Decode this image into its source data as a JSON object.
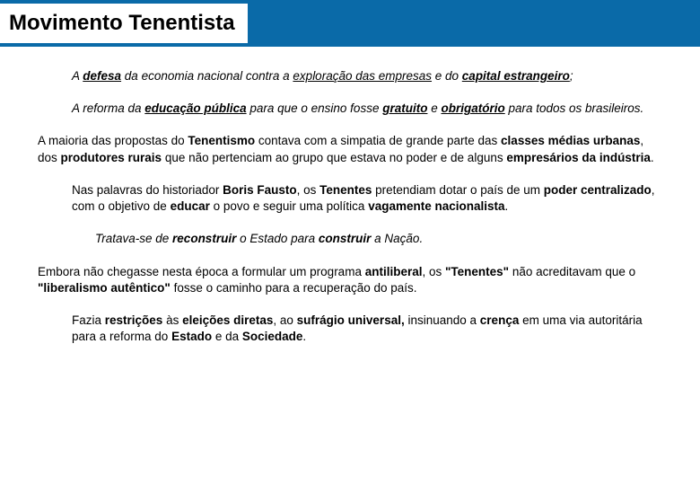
{
  "colors": {
    "header_bg": "#0a6aa8",
    "page_bg": "#ffffff",
    "text": "#000000"
  },
  "typography": {
    "title_fontsize": 24,
    "body_fontsize": 13.5,
    "font_family": "Arial"
  },
  "title": "Movimento Tenentista",
  "paragraphs": [
    {
      "indent": 1,
      "runs": [
        {
          "t": "A ",
          "i": true
        },
        {
          "t": "defesa",
          "i": true,
          "b": true,
          "u": true
        },
        {
          "t": " da economia nacional contra a ",
          "i": true
        },
        {
          "t": "exploração das empresas",
          "i": true,
          "u": true
        },
        {
          "t": " e do ",
          "i": true
        },
        {
          "t": "capital estrangeiro",
          "i": true,
          "b": true,
          "u": true
        },
        {
          "t": ";",
          "i": true
        }
      ]
    },
    {
      "indent": 1,
      "runs": [
        {
          "t": "A reforma da ",
          "i": true
        },
        {
          "t": "educação pública",
          "i": true,
          "b": true,
          "u": true
        },
        {
          "t": " para que o ensino fosse ",
          "i": true
        },
        {
          "t": "gratuito",
          "i": true,
          "b": true,
          "u": true
        },
        {
          "t": " e ",
          "i": true
        },
        {
          "t": "obrigatório",
          "i": true,
          "b": true,
          "u": true
        },
        {
          "t": " para todos os brasileiros.",
          "i": true
        }
      ]
    },
    {
      "indent": 0,
      "runs": [
        {
          "t": "A maioria das propostas do "
        },
        {
          "t": "Tenentismo",
          "b": true
        },
        {
          "t": " contava com a simpatia de grande parte das "
        },
        {
          "t": "classes médias urbanas",
          "b": true
        },
        {
          "t": ", dos "
        },
        {
          "t": "produtores rurais",
          "b": true
        },
        {
          "t": " que não pertenciam ao grupo que estava no poder e de alguns "
        },
        {
          "t": "empresários da indústria",
          "b": true
        },
        {
          "t": "."
        }
      ]
    },
    {
      "indent": 1,
      "runs": [
        {
          "t": "Nas palavras do historiador "
        },
        {
          "t": "Boris Fausto",
          "b": true
        },
        {
          "t": ", os "
        },
        {
          "t": "Tenentes",
          "b": true
        },
        {
          "t": " pretendiam dotar o país de um "
        },
        {
          "t": "poder centralizado",
          "b": true
        },
        {
          "t": ", com o objetivo de "
        },
        {
          "t": "educar",
          "b": true
        },
        {
          "t": " o povo e seguir uma política "
        },
        {
          "t": "vagamente nacionalista",
          "b": true
        },
        {
          "t": "."
        }
      ]
    },
    {
      "indent": 2,
      "runs": [
        {
          "t": "Tratava-se de ",
          "i": true
        },
        {
          "t": "reconstruir",
          "i": true,
          "b": true
        },
        {
          "t": " o Estado para ",
          "i": true
        },
        {
          "t": "construir",
          "i": true,
          "b": true
        },
        {
          "t": " a Nação.",
          "i": true
        }
      ]
    },
    {
      "indent": 0,
      "runs": [
        {
          "t": "Embora não chegasse nesta época a formular um programa "
        },
        {
          "t": "antiliberal",
          "b": true
        },
        {
          "t": ", os "
        },
        {
          "t": "\"Tenentes\"",
          "b": true
        },
        {
          "t": " não acreditavam que o "
        },
        {
          "t": "\"liberalismo autêntico\"",
          "b": true
        },
        {
          "t": " fosse o caminho para a recuperação do país."
        }
      ]
    },
    {
      "indent": 1,
      "runs": [
        {
          "t": "Fazia "
        },
        {
          "t": "restrições",
          "b": true
        },
        {
          "t": " às "
        },
        {
          "t": "eleições diretas",
          "b": true
        },
        {
          "t": ", ao "
        },
        {
          "t": "sufrágio universal,",
          "b": true
        },
        {
          "t": " insinuando a "
        },
        {
          "t": "crença",
          "b": true
        },
        {
          "t": " em uma via autoritária para a reforma do "
        },
        {
          "t": "Estado",
          "b": true
        },
        {
          "t": " e da "
        },
        {
          "t": "Sociedade",
          "b": true
        },
        {
          "t": "."
        }
      ]
    }
  ]
}
